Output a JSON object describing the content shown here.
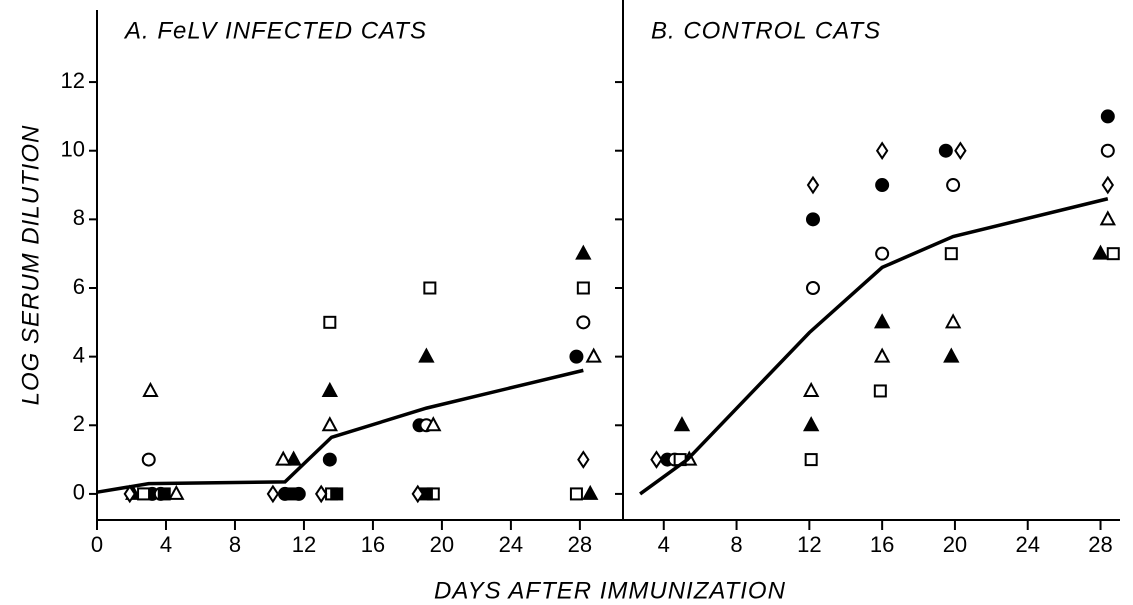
{
  "xlabel": "DAYS AFTER IMMUNIZATION",
  "ylabel": "LOG SERUM DILUTION",
  "chart_data": [
    {
      "type": "scatter",
      "title": "A. FeLV INFECTED CATS",
      "color": "#000000",
      "xlim": [
        0,
        30.5
      ],
      "ylim": [
        -0.76,
        14.1
      ],
      "xticks": [
        0,
        4,
        8,
        12,
        16,
        20,
        24,
        28
      ],
      "yticks": [
        0,
        2,
        4,
        6,
        8,
        10,
        12
      ],
      "ytick_labels": true,
      "series": [
        {
          "marker": "filled-circle",
          "x": [
            3.2,
            10.9,
            11.7,
            13.5,
            18.7,
            27.8
          ],
          "values": [
            0,
            0,
            0,
            1,
            2,
            4
          ]
        },
        {
          "marker": "open-circle",
          "x": [
            3.0,
            3.7,
            19.1,
            28.2
          ],
          "values": [
            1,
            0,
            2,
            5
          ]
        },
        {
          "marker": "filled-triangle",
          "x": [
            2.1,
            11.4,
            13.5,
            19.1,
            28.2,
            28.6
          ],
          "values": [
            0,
            1,
            3,
            4,
            7,
            0
          ]
        },
        {
          "marker": "open-triangle",
          "x": [
            3.1,
            4.6,
            10.8,
            13.5,
            19.5,
            28.8
          ],
          "values": [
            3,
            0,
            1,
            2,
            2,
            4
          ]
        },
        {
          "marker": "open-square",
          "x": [
            2.7,
            13.5,
            13.6,
            19.3,
            19.5,
            28.2,
            27.8
          ],
          "values": [
            0,
            5,
            0,
            6,
            0,
            6,
            0
          ]
        },
        {
          "marker": "filled-square",
          "x": [
            3.9,
            11.2,
            13.9,
            19.1
          ],
          "values": [
            0,
            0,
            0,
            0
          ]
        },
        {
          "marker": "open-diamond",
          "x": [
            1.9,
            10.2,
            13.0,
            18.6,
            28.2
          ],
          "values": [
            0,
            0,
            0,
            0,
            1
          ]
        }
      ],
      "line": {
        "x": [
          0,
          3,
          10.9,
          13.6,
          19.1,
          28.2
        ],
        "values": [
          0.05,
          0.3,
          0.35,
          1.65,
          2.5,
          3.6
        ]
      }
    },
    {
      "type": "scatter",
      "title": "B. CONTROL CATS",
      "color": "#000000",
      "xlim": [
        1.76,
        29.07
      ],
      "ylim": [
        -0.76,
        14.1
      ],
      "xticks": [
        4,
        8,
        12,
        16,
        20,
        24,
        28
      ],
      "yticks": [
        0,
        2,
        4,
        6,
        8,
        10,
        12
      ],
      "ytick_labels": false,
      "series": [
        {
          "marker": "filled-circle",
          "x": [
            4.2,
            12.2,
            16.0,
            19.5,
            28.4
          ],
          "values": [
            1,
            8,
            9,
            10,
            11
          ]
        },
        {
          "marker": "open-circle",
          "x": [
            4.6,
            12.2,
            16.0,
            19.9,
            28.4
          ],
          "values": [
            1,
            6,
            7,
            9,
            10
          ]
        },
        {
          "marker": "filled-triangle",
          "x": [
            5.0,
            12.1,
            16.0,
            19.8,
            28.0
          ],
          "values": [
            2,
            2,
            5,
            4,
            7
          ]
        },
        {
          "marker": "open-triangle",
          "x": [
            5.4,
            12.1,
            16.0,
            19.9,
            28.4
          ],
          "values": [
            1,
            3,
            4,
            5,
            8
          ]
        },
        {
          "marker": "open-square",
          "x": [
            4.9,
            12.1,
            15.9,
            19.8,
            28.7
          ],
          "values": [
            1,
            1,
            3,
            7,
            7
          ]
        },
        {
          "marker": "open-diamond",
          "x": [
            3.6,
            12.2,
            16.0,
            20.3,
            28.4
          ],
          "values": [
            1,
            9,
            10,
            10,
            9
          ]
        }
      ],
      "line": {
        "x": [
          2.7,
          5.3,
          12.0,
          16.0,
          19.9,
          28.4
        ],
        "values": [
          0,
          1,
          4.7,
          6.6,
          7.5,
          8.6
        ]
      }
    }
  ]
}
